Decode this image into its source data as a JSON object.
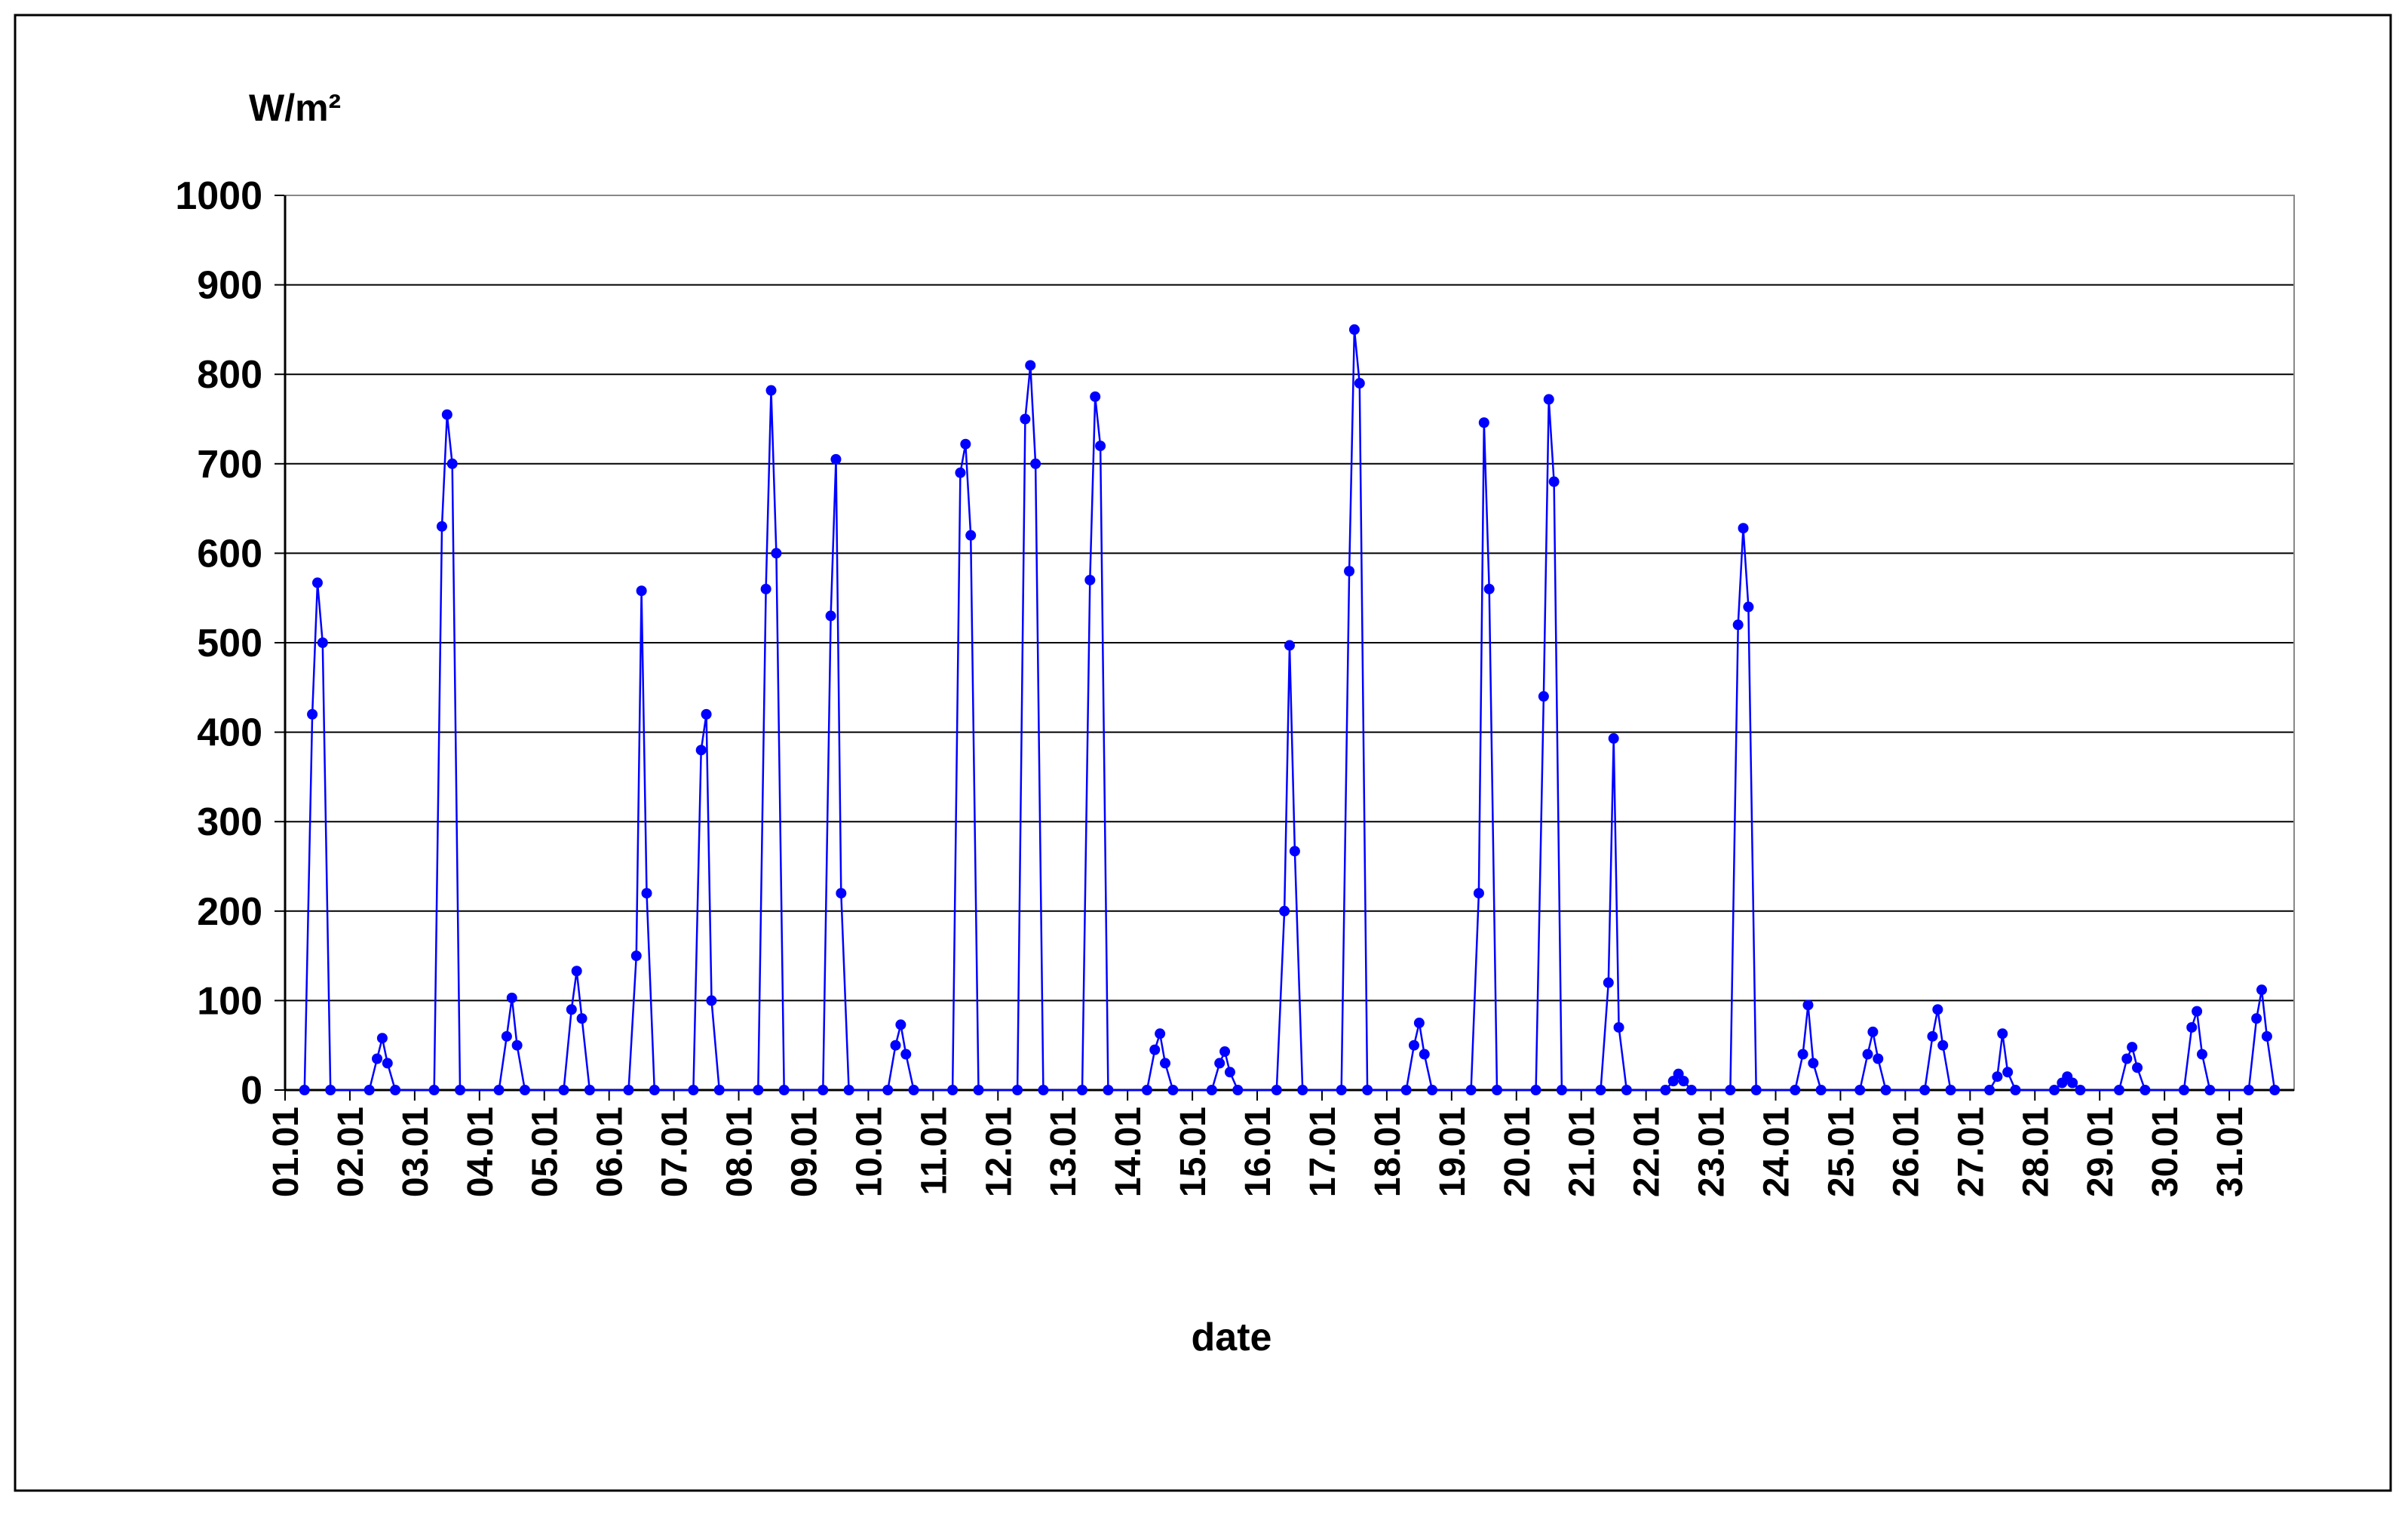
{
  "chart_data": {
    "type": "line",
    "y_label": "W/m²",
    "x_label": "date",
    "color": "#0000ff",
    "grid": true,
    "xlim": [
      1,
      32
    ],
    "ylim": [
      0,
      1000
    ],
    "yticks": [
      0,
      100,
      200,
      300,
      400,
      500,
      600,
      700,
      800,
      900,
      1000
    ],
    "xticks": [
      {
        "value": 1,
        "label": "01.01"
      },
      {
        "value": 2,
        "label": "02.01"
      },
      {
        "value": 3,
        "label": "03.01"
      },
      {
        "value": 4,
        "label": "04.01"
      },
      {
        "value": 5,
        "label": "05.01"
      },
      {
        "value": 6,
        "label": "06.01"
      },
      {
        "value": 7,
        "label": "07.01"
      },
      {
        "value": 8,
        "label": "08.01"
      },
      {
        "value": 9,
        "label": "09.01"
      },
      {
        "value": 10,
        "label": "10.01"
      },
      {
        "value": 11,
        "label": "11.01"
      },
      {
        "value": 12,
        "label": "12.01"
      },
      {
        "value": 13,
        "label": "13.01"
      },
      {
        "value": 14,
        "label": "14.01"
      },
      {
        "value": 15,
        "label": "15.01"
      },
      {
        "value": 16,
        "label": "16.01"
      },
      {
        "value": 17,
        "label": "17.01"
      },
      {
        "value": 18,
        "label": "18.01"
      },
      {
        "value": 19,
        "label": "19.01"
      },
      {
        "value": 20,
        "label": "20.01"
      },
      {
        "value": 21,
        "label": "21.01"
      },
      {
        "value": 22,
        "label": "22.01"
      },
      {
        "value": 23,
        "label": "23.01"
      },
      {
        "value": 24,
        "label": "24.01"
      },
      {
        "value": 25,
        "label": "25.01"
      },
      {
        "value": 26,
        "label": "26.01"
      },
      {
        "value": 27,
        "label": "27.01"
      },
      {
        "value": 28,
        "label": "28.01"
      },
      {
        "value": 29,
        "label": "29.01"
      },
      {
        "value": 30,
        "label": "30.01"
      },
      {
        "value": 31,
        "label": "31.01"
      }
    ],
    "x": [
      1.3,
      1.42,
      1.5,
      1.58,
      1.7,
      2.3,
      2.42,
      2.5,
      2.58,
      2.7,
      3.3,
      3.42,
      3.5,
      3.58,
      3.7,
      4.3,
      4.42,
      4.5,
      4.58,
      4.7,
      5.3,
      5.42,
      5.5,
      5.58,
      5.7,
      6.3,
      6.42,
      6.5,
      6.58,
      6.7,
      7.3,
      7.42,
      7.5,
      7.58,
      7.7,
      8.3,
      8.42,
      8.5,
      8.58,
      8.7,
      9.3,
      9.42,
      9.5,
      9.58,
      9.7,
      10.3,
      10.42,
      10.5,
      10.58,
      10.7,
      11.3,
      11.42,
      11.5,
      11.58,
      11.7,
      12.3,
      12.42,
      12.5,
      12.58,
      12.7,
      13.3,
      13.42,
      13.5,
      13.58,
      13.7,
      14.3,
      14.42,
      14.5,
      14.58,
      14.7,
      15.3,
      15.42,
      15.5,
      15.58,
      15.7,
      16.3,
      16.42,
      16.5,
      16.58,
      16.7,
      17.3,
      17.42,
      17.5,
      17.58,
      17.7,
      18.3,
      18.42,
      18.5,
      18.58,
      18.7,
      19.3,
      19.42,
      19.5,
      19.58,
      19.7,
      20.3,
      20.42,
      20.5,
      20.58,
      20.7,
      21.3,
      21.42,
      21.5,
      21.58,
      21.7,
      22.3,
      22.42,
      22.5,
      22.58,
      22.7,
      23.3,
      23.42,
      23.5,
      23.58,
      23.7,
      24.3,
      24.42,
      24.5,
      24.58,
      24.7,
      25.3,
      25.42,
      25.5,
      25.58,
      25.7,
      26.3,
      26.42,
      26.5,
      26.58,
      26.7,
      27.3,
      27.42,
      27.5,
      27.58,
      27.7,
      28.3,
      28.42,
      28.5,
      28.58,
      28.7,
      29.3,
      29.42,
      29.5,
      29.58,
      29.7,
      30.3,
      30.42,
      30.5,
      30.58,
      30.7,
      31.3,
      31.42,
      31.5,
      31.58,
      31.7
    ],
    "values": [
      0,
      420,
      567,
      500,
      0,
      0,
      35,
      58,
      30,
      0,
      0,
      630,
      755,
      700,
      0,
      0,
      60,
      103,
      50,
      0,
      0,
      90,
      133,
      80,
      0,
      0,
      150,
      558,
      220,
      0,
      0,
      380,
      420,
      100,
      0,
      0,
      560,
      782,
      600,
      0,
      0,
      530,
      705,
      220,
      0,
      0,
      50,
      73,
      40,
      0,
      0,
      690,
      722,
      620,
      0,
      0,
      750,
      810,
      700,
      0,
      0,
      570,
      775,
      720,
      0,
      0,
      45,
      63,
      30,
      0,
      0,
      30,
      43,
      20,
      0,
      0,
      200,
      497,
      267,
      0,
      0,
      580,
      850,
      790,
      0,
      0,
      50,
      75,
      40,
      0,
      0,
      220,
      746,
      560,
      0,
      0,
      440,
      772,
      680,
      0,
      0,
      120,
      393,
      70,
      0,
      0,
      10,
      18,
      10,
      0,
      0,
      520,
      628,
      540,
      0,
      0,
      40,
      95,
      30,
      0,
      0,
      40,
      65,
      35,
      0,
      0,
      60,
      90,
      50,
      0,
      0,
      15,
      63,
      20,
      0,
      0,
      8,
      15,
      8,
      0,
      0,
      35,
      48,
      25,
      0,
      0,
      70,
      88,
      40,
      0,
      0,
      80,
      112,
      60,
      0
    ]
  }
}
